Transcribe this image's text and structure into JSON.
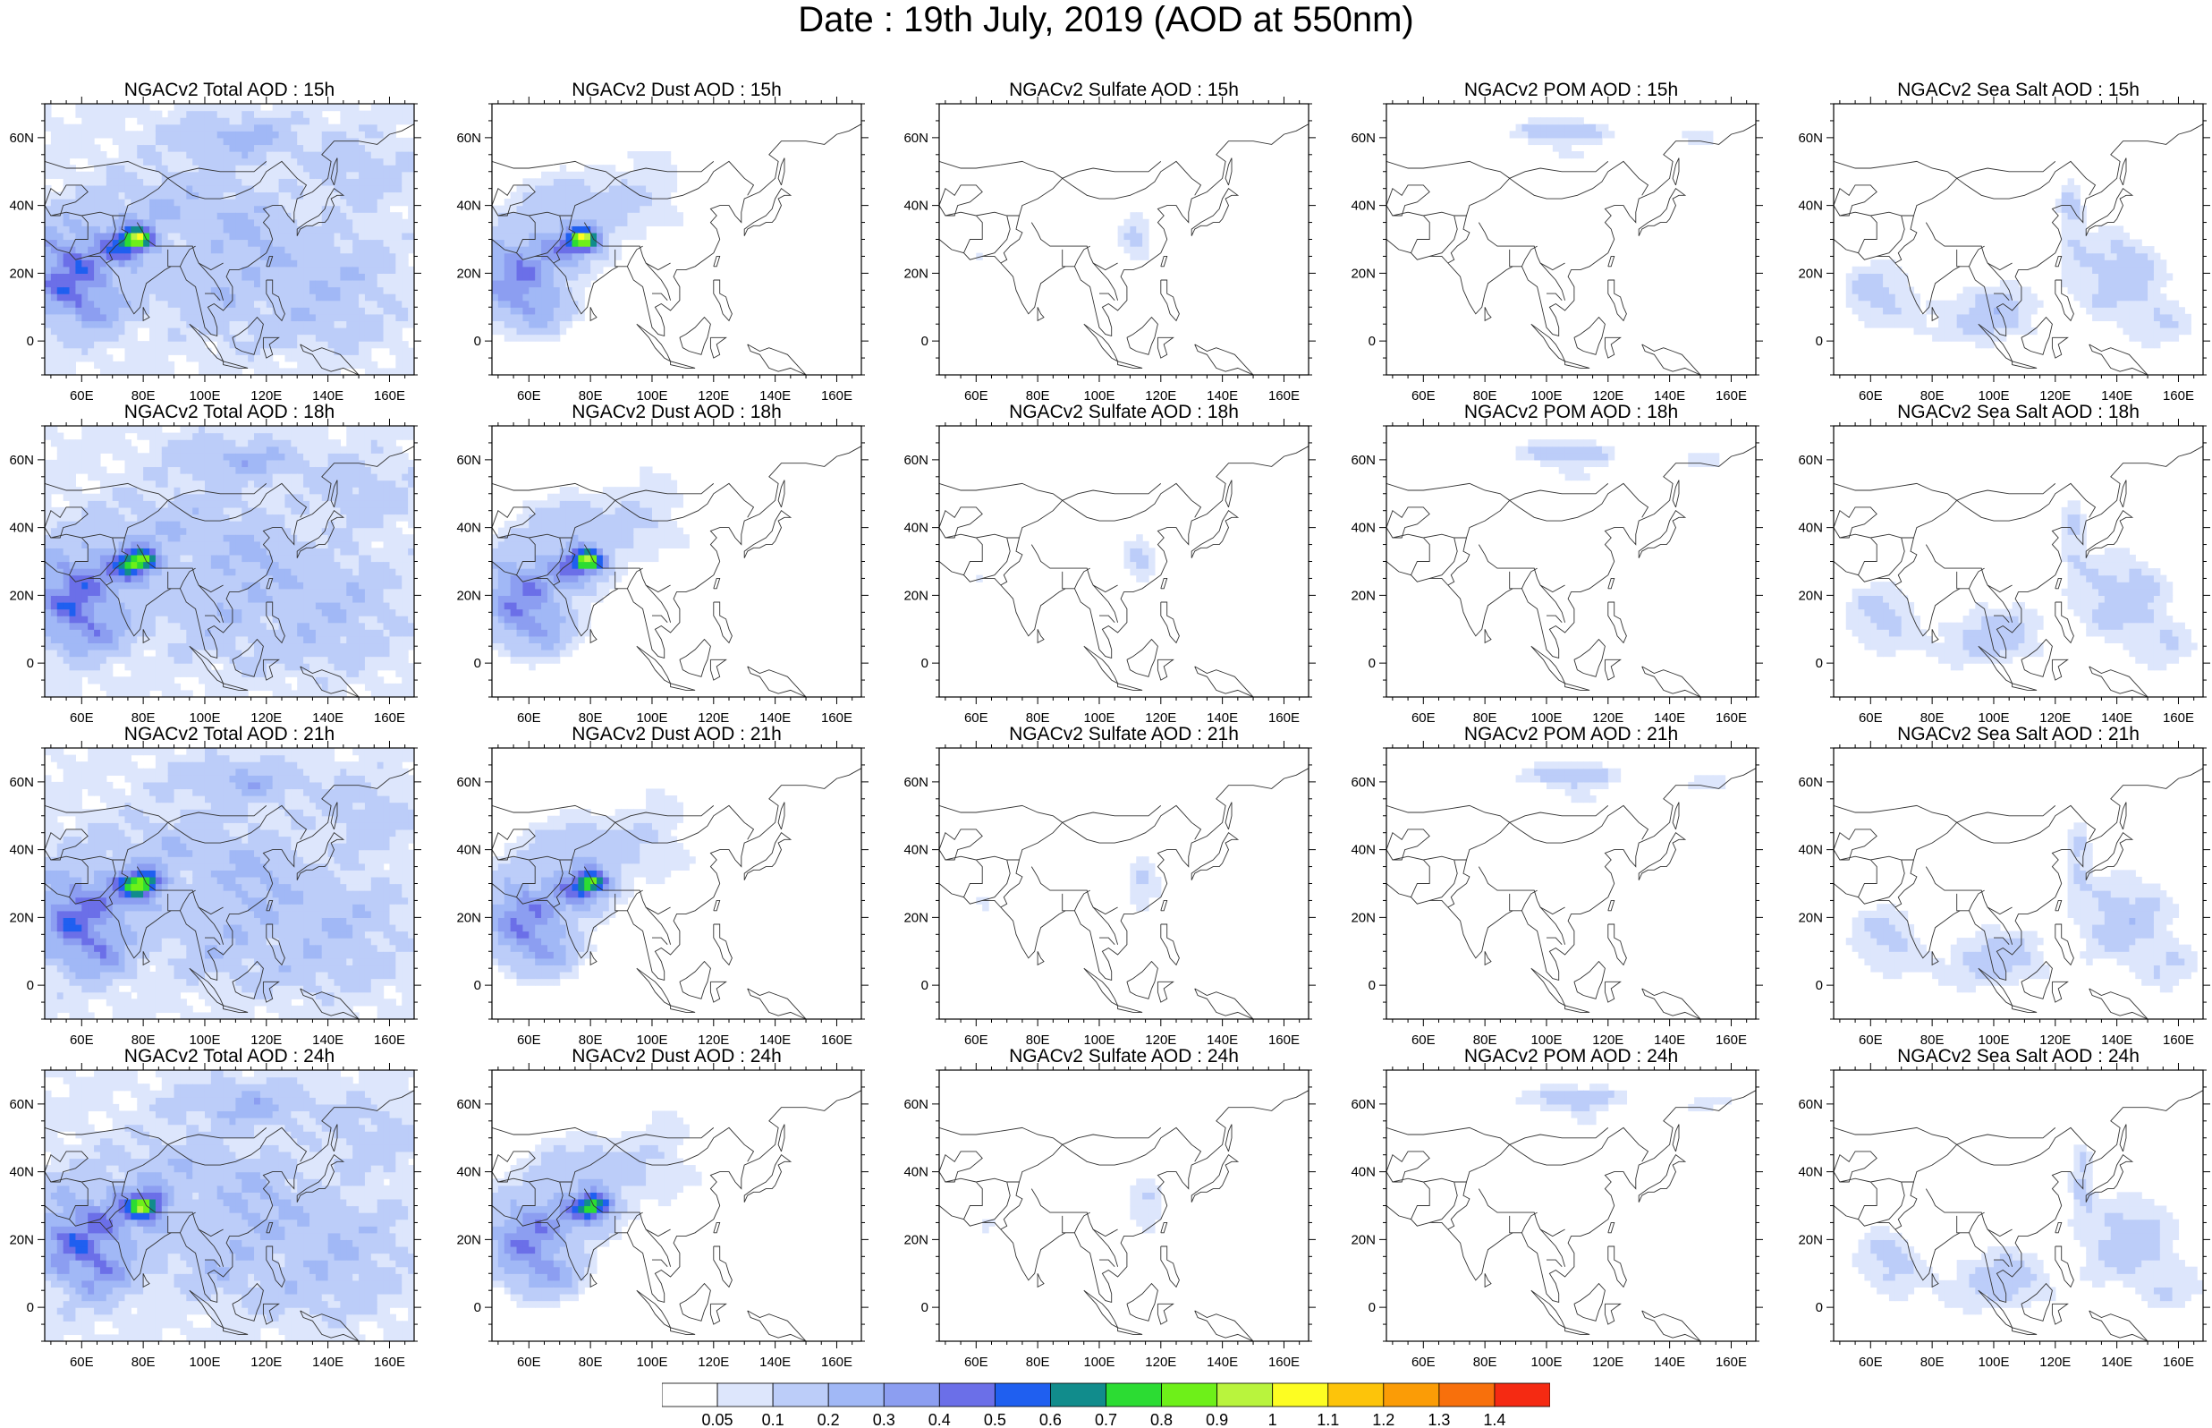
{
  "title": "Date : 19th July, 2019 (AOD at 550nm)",
  "axes": {
    "x_ticks": [
      "60E",
      "80E",
      "100E",
      "120E",
      "140E",
      "160E"
    ],
    "x_values": [
      60,
      80,
      100,
      120,
      140,
      160
    ],
    "y_ticks": [
      "60N",
      "40N",
      "20N",
      "0"
    ],
    "y_values": [
      60,
      40,
      20,
      0
    ],
    "lon_range": [
      48,
      168
    ],
    "lat_range": [
      -10,
      70
    ]
  },
  "colorbar": {
    "labels": [
      "0.05",
      "0.1",
      "0.2",
      "0.3",
      "0.4",
      "0.5",
      "0.6",
      "0.7",
      "0.8",
      "0.9",
      "1",
      "1.1",
      "1.2",
      "1.3",
      "1.4"
    ],
    "colors": [
      "#ffffff",
      "#dde6fc",
      "#bccdf9",
      "#a1b8f6",
      "#8c9ef1",
      "#6b6fe8",
      "#1f5ff0",
      "#118c8c",
      "#2cdc33",
      "#6ef019",
      "#b9f43d",
      "#fdfd22",
      "#fdc40a",
      "#fb9c06",
      "#f8700c",
      "#f52a12"
    ]
  },
  "panels": [
    {
      "title": "NGACv2 Total AOD : 15h",
      "species": "total"
    },
    {
      "title": "NGACv2 Dust AOD : 15h",
      "species": "dust"
    },
    {
      "title": "NGACv2 Sulfate AOD : 15h",
      "species": "sulfate"
    },
    {
      "title": "NGACv2 POM AOD : 15h",
      "species": "pom"
    },
    {
      "title": "NGACv2 Sea Salt AOD : 15h",
      "species": "seasalt"
    },
    {
      "title": "NGACv2 Total AOD : 18h",
      "species": "total"
    },
    {
      "title": "NGACv2 Dust AOD : 18h",
      "species": "dust"
    },
    {
      "title": "NGACv2 Sulfate AOD : 18h",
      "species": "sulfate"
    },
    {
      "title": "NGACv2 POM AOD : 18h",
      "species": "pom"
    },
    {
      "title": "NGACv2 Sea Salt AOD : 18h",
      "species": "seasalt"
    },
    {
      "title": "NGACv2 Total AOD : 21h",
      "species": "total"
    },
    {
      "title": "NGACv2 Dust AOD : 21h",
      "species": "dust"
    },
    {
      "title": "NGACv2 Sulfate AOD : 21h",
      "species": "sulfate"
    },
    {
      "title": "NGACv2 POM AOD : 21h",
      "species": "pom"
    },
    {
      "title": "NGACv2 Sea Salt AOD : 21h",
      "species": "seasalt"
    },
    {
      "title": "NGACv2 Total AOD : 24h",
      "species": "total"
    },
    {
      "title": "NGACv2 Dust AOD : 24h",
      "species": "dust"
    },
    {
      "title": "NGACv2 Sulfate AOD : 24h",
      "species": "sulfate"
    },
    {
      "title": "NGACv2 POM AOD : 24h",
      "species": "pom"
    },
    {
      "title": "NGACv2 Sea Salt  AOD : 24h",
      "species": "seasalt"
    }
  ]
}
